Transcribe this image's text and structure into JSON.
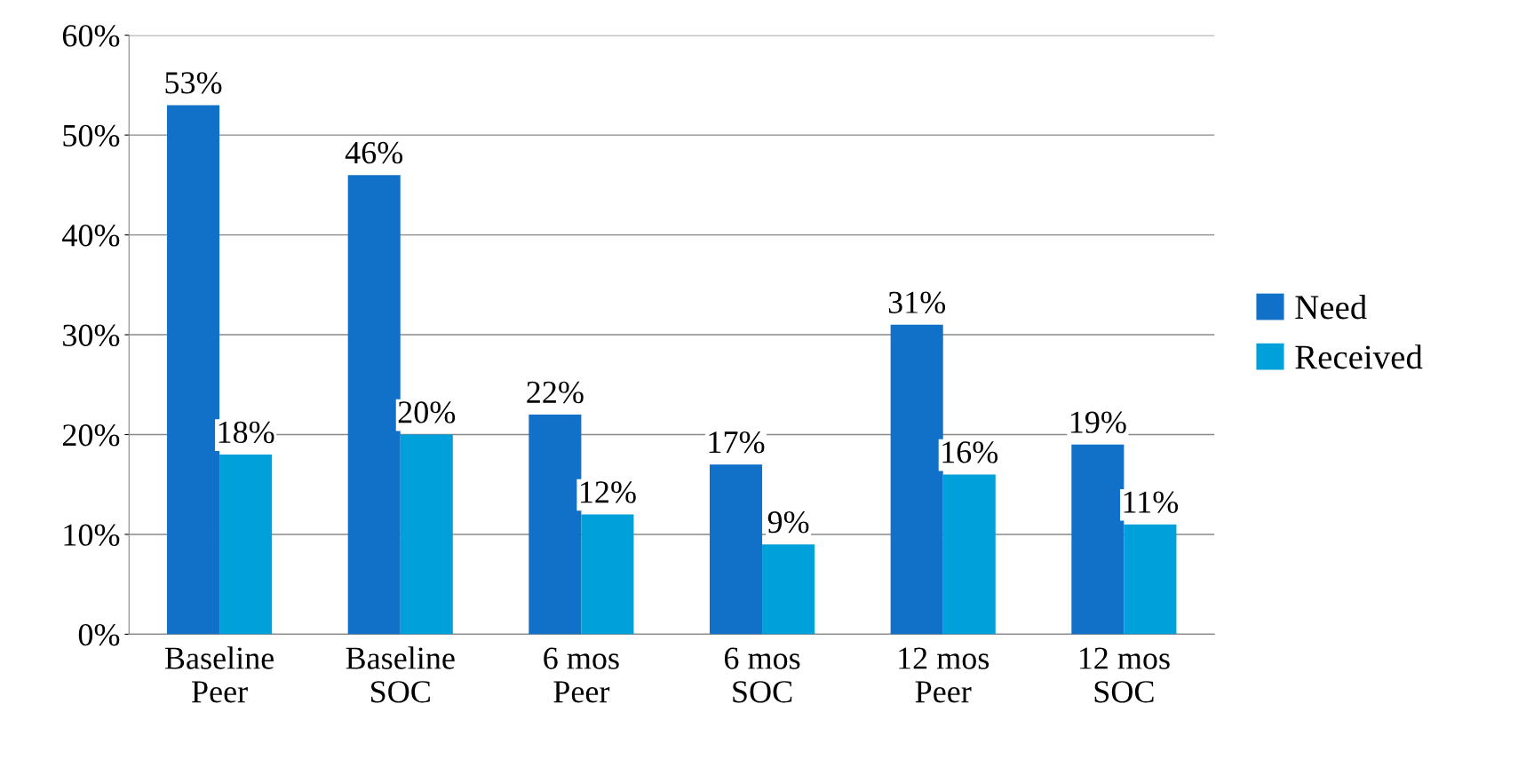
{
  "chart_data": {
    "type": "bar",
    "categories": [
      "Baseline\nPeer",
      "Baseline\nSOC",
      "6 mos\nPeer",
      "6 mos\nSOC",
      "12 mos\nPeer",
      "12 mos\nSOC"
    ],
    "series": [
      {
        "name": "Need",
        "color": "#1170c8",
        "values": [
          53,
          46,
          22,
          17,
          31,
          19
        ],
        "value_labels": [
          "53%",
          "46%",
          "22%",
          "17%",
          "31%",
          "19%"
        ]
      },
      {
        "name": "Received",
        "color": "#00a0da",
        "values": [
          18,
          20,
          12,
          9,
          16,
          11
        ],
        "value_labels": [
          "18%",
          "20%",
          "12%",
          "9%",
          "16%",
          "11%"
        ]
      }
    ],
    "ylim": [
      0,
      60
    ],
    "yticks": [
      {
        "value": 0,
        "label": "0%"
      },
      {
        "value": 10,
        "label": "10%"
      },
      {
        "value": 20,
        "label": "20%"
      },
      {
        "value": 30,
        "label": "30%"
      },
      {
        "value": 40,
        "label": "40%"
      },
      {
        "value": 50,
        "label": "50%"
      },
      {
        "value": 60,
        "label": "60%"
      }
    ],
    "grid": "y",
    "legend": "right"
  }
}
